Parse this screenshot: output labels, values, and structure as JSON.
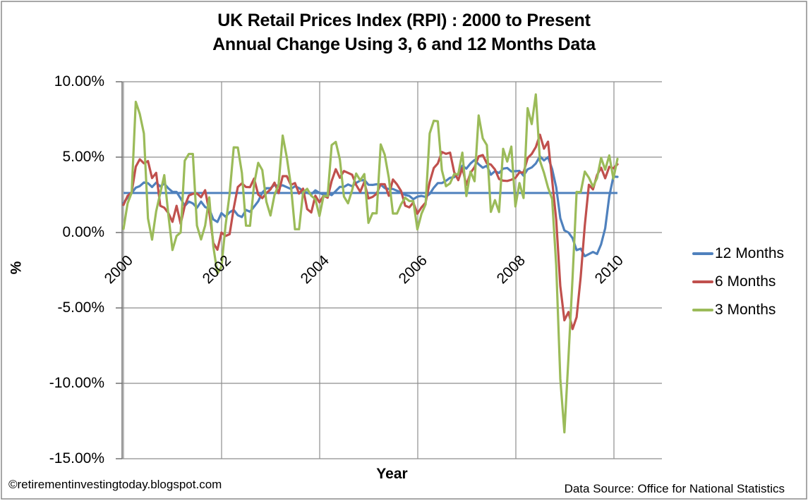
{
  "title": {
    "line1": "UK Retail Prices Index (RPI) : 2000 to Present",
    "line2": "Annual Change Using 3, 6 and 12 Months Data"
  },
  "footer": {
    "copyright": "©retirementinvestingtoday.blogspot.com",
    "data_source": "Data Source: Office for National Statistics"
  },
  "chart_data": {
    "type": "line",
    "title": "UK Retail Prices Index (RPI) : 2000 to Present — Annual Change Using 3, 6 and 12 Months Data",
    "x_axis": {
      "title": "Year",
      "tick_labels": [
        "2000",
        "2002",
        "2004",
        "2006",
        "2008",
        "2010"
      ],
      "start": "2000-01",
      "end": "2010-02",
      "interval": "monthly"
    },
    "y_axis": {
      "title": "%",
      "tick_labels": [
        "10.00%",
        "5.00%",
        "0.00%",
        "-5.00%",
        "-10.00%",
        "-15.00%"
      ],
      "tick_values": [
        10,
        5,
        0,
        -5,
        -10,
        -15
      ],
      "ylim": [
        -15,
        10
      ]
    },
    "grid": true,
    "legend_position": "right",
    "colors": {
      "grid": "#8e8e8e",
      "axis": "#707070",
      "border": "#8a8a8a"
    },
    "average_line": {
      "value": 2.62,
      "color": "#4F81BD"
    },
    "series": [
      {
        "name": "12 Months",
        "color": "#4F81BD",
        "values": [
          1.96,
          2.32,
          2.62,
          2.97,
          3.08,
          3.32,
          3.27,
          3.02,
          3.31,
          3.06,
          3.24,
          2.93,
          2.7,
          2.69,
          2.26,
          1.76,
          2.05,
          1.93,
          1.64,
          2.05,
          1.69,
          1.57,
          0.87,
          0.7,
          1.29,
          1.05,
          1.34,
          1.5,
          1.15,
          1.03,
          1.5,
          1.38,
          1.72,
          2.07,
          2.65,
          2.94,
          2.94,
          3.16,
          3.09,
          3.13,
          3.01,
          2.89,
          3.07,
          2.95,
          2.76,
          2.64,
          2.53,
          2.8,
          2.63,
          2.51,
          2.61,
          2.48,
          2.75,
          3.03,
          3.03,
          3.19,
          3.07,
          3.29,
          3.45,
          3.49,
          3.17,
          3.16,
          3.2,
          3.18,
          2.95,
          2.89,
          2.89,
          2.77,
          2.66,
          2.49,
          2.43,
          2.21,
          2.38,
          2.43,
          2.36,
          2.56,
          2.97,
          3.28,
          3.28,
          3.43,
          3.63,
          3.67,
          3.87,
          4.43,
          4.24,
          4.58,
          4.82,
          4.53,
          4.3,
          4.43,
          3.83,
          4.07,
          3.95,
          4.24,
          4.28,
          4.05,
          4.07,
          4.09,
          3.77,
          4.19,
          4.32,
          4.58,
          5.05,
          4.78,
          5.0,
          4.21,
          3.0,
          0.95,
          0.14,
          0.0,
          -0.38,
          -1.17,
          -1.07,
          -1.57,
          -1.43,
          -1.29,
          -1.42,
          -0.78,
          0.28,
          2.4,
          3.71,
          3.69
        ]
      },
      {
        "name": "6 Months",
        "color": "#C0504D",
        "values": [
          1.83,
          2.43,
          2.66,
          4.37,
          4.86,
          4.59,
          4.74,
          3.61,
          3.96,
          1.77,
          1.65,
          1.29,
          0.71,
          1.77,
          0.58,
          1.76,
          2.45,
          2.57,
          2.59,
          2.34,
          2.81,
          1.39,
          -0.69,
          -1.14,
          0.0,
          -0.23,
          -0.11,
          1.61,
          3.02,
          3.26,
          3.02,
          3.01,
          3.58,
          2.52,
          2.28,
          2.62,
          2.86,
          3.31,
          2.61,
          3.74,
          3.74,
          3.16,
          3.28,
          2.58,
          2.91,
          1.55,
          1.33,
          2.44,
          2.0,
          2.44,
          2.31,
          3.42,
          4.2,
          3.63,
          4.08,
          3.96,
          3.83,
          3.15,
          2.7,
          3.35,
          2.26,
          2.36,
          2.57,
          3.21,
          3.2,
          2.44,
          3.52,
          3.19,
          2.75,
          1.78,
          1.67,
          1.99,
          1.25,
          1.67,
          1.98,
          3.34,
          4.28,
          4.58,
          5.34,
          5.22,
          5.3,
          4.01,
          3.47,
          4.28,
          3.15,
          3.95,
          4.34,
          5.05,
          5.14,
          4.59,
          4.51,
          4.18,
          3.55,
          3.44,
          3.42,
          3.5,
          3.62,
          3.99,
          3.98,
          4.94,
          5.21,
          5.67,
          6.49,
          5.56,
          6.03,
          3.49,
          0.84,
          -3.56,
          -5.82,
          -5.27,
          -6.4,
          -5.61,
          -2.94,
          0.47,
          3.17,
          2.86,
          3.82,
          4.3,
          3.6,
          4.36,
          4.26,
          4.53
        ]
      },
      {
        "name": "3 Months",
        "color": "#9BBB59",
        "values": [
          0.24,
          1.93,
          2.65,
          8.67,
          7.86,
          6.57,
          0.94,
          -0.47,
          1.41,
          2.61,
          3.81,
          1.17,
          -1.16,
          -0.23,
          0.0,
          4.76,
          5.21,
          5.21,
          0.46,
          -0.46,
          0.46,
          2.33,
          -0.92,
          -2.72,
          -2.27,
          0.46,
          2.56,
          5.65,
          5.64,
          3.95,
          0.46,
          0.45,
          3.21,
          4.62,
          4.14,
          2.04,
          1.13,
          2.49,
          3.17,
          6.43,
          4.99,
          3.15,
          0.22,
          0.22,
          2.67,
          2.9,
          2.44,
          2.21,
          1.1,
          2.43,
          2.42,
          5.8,
          6.01,
          4.85,
          2.39,
          1.94,
          2.81,
          3.91,
          3.46,
          3.88,
          0.64,
          1.28,
          1.27,
          5.84,
          5.16,
          3.62,
          1.26,
          1.26,
          1.88,
          2.31,
          2.09,
          2.09,
          0.21,
          1.25,
          1.87,
          6.57,
          7.41,
          7.38,
          4.13,
          3.07,
          3.26,
          3.88,
          3.87,
          5.3,
          2.42,
          4.04,
          3.4,
          7.76,
          6.25,
          5.8,
          1.37,
          2.15,
          1.36,
          5.55,
          4.71,
          5.7,
          1.73,
          3.28,
          2.29,
          8.25,
          7.19,
          9.16,
          4.76,
          3.96,
          2.98,
          2.23,
          -2.19,
          -9.7,
          -13.25,
          -8.26,
          -2.97,
          2.69,
          2.67,
          4.04,
          3.64,
          3.04,
          3.61,
          4.96,
          4.17,
          5.11,
          3.57,
          4.89
        ]
      }
    ]
  }
}
